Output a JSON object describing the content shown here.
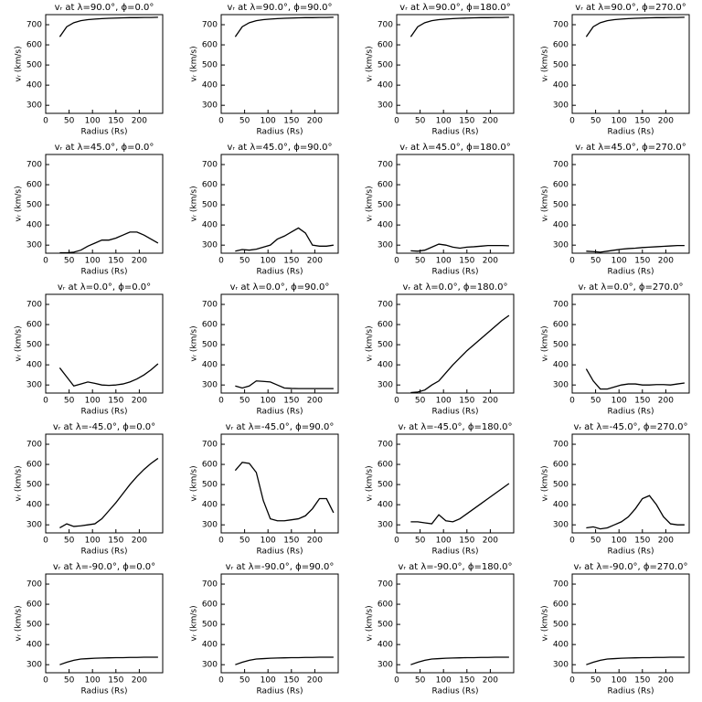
{
  "chart_data": [
    {
      "type": "line",
      "title": "vᵣ at λ=90.0°, ϕ=0.0°",
      "xlabel": "Radius (Rs)",
      "ylabel": "vᵣ (km/s)",
      "x": [
        30,
        45,
        60,
        75,
        90,
        105,
        120,
        135,
        150,
        165,
        180,
        195,
        210,
        225,
        240
      ],
      "values": [
        640,
        690,
        710,
        720,
        725,
        728,
        730,
        732,
        733,
        734,
        735,
        735,
        736,
        736,
        737
      ],
      "xlim": [
        0,
        250
      ],
      "ylim": [
        260,
        750
      ],
      "xticks": [
        0,
        50,
        100,
        150,
        200
      ],
      "yticks": [
        300,
        400,
        500,
        600,
        700
      ],
      "color": "#000000"
    },
    {
      "type": "line",
      "title": "vᵣ at λ=90.0°, ϕ=90.0°",
      "xlabel": "Radius (Rs)",
      "ylabel": "vᵣ (km/s)",
      "x": [
        30,
        45,
        60,
        75,
        90,
        105,
        120,
        135,
        150,
        165,
        180,
        195,
        210,
        225,
        240
      ],
      "values": [
        640,
        690,
        710,
        720,
        725,
        728,
        730,
        732,
        733,
        734,
        735,
        735,
        736,
        736,
        737
      ],
      "xlim": [
        0,
        250
      ],
      "ylim": [
        260,
        750
      ],
      "xticks": [
        0,
        50,
        100,
        150,
        200
      ],
      "yticks": [
        300,
        400,
        500,
        600,
        700
      ],
      "color": "#000000"
    },
    {
      "type": "line",
      "title": "vᵣ at λ=90.0°, ϕ=180.0°",
      "xlabel": "Radius (Rs)",
      "ylabel": "vᵣ (km/s)",
      "x": [
        30,
        45,
        60,
        75,
        90,
        105,
        120,
        135,
        150,
        165,
        180,
        195,
        210,
        225,
        240
      ],
      "values": [
        640,
        690,
        710,
        720,
        725,
        728,
        730,
        732,
        733,
        734,
        735,
        735,
        736,
        736,
        737
      ],
      "xlim": [
        0,
        250
      ],
      "ylim": [
        260,
        750
      ],
      "xticks": [
        0,
        50,
        100,
        150,
        200
      ],
      "yticks": [
        300,
        400,
        500,
        600,
        700
      ],
      "color": "#000000"
    },
    {
      "type": "line",
      "title": "vᵣ at λ=90.0°, ϕ=270.0°",
      "xlabel": "Radius (Rs)",
      "ylabel": "vᵣ (km/s)",
      "x": [
        30,
        45,
        60,
        75,
        90,
        105,
        120,
        135,
        150,
        165,
        180,
        195,
        210,
        225,
        240
      ],
      "values": [
        640,
        690,
        710,
        720,
        725,
        728,
        730,
        732,
        733,
        734,
        735,
        735,
        736,
        736,
        737
      ],
      "xlim": [
        0,
        250
      ],
      "ylim": [
        260,
        750
      ],
      "xticks": [
        0,
        50,
        100,
        150,
        200
      ],
      "yticks": [
        300,
        400,
        500,
        600,
        700
      ],
      "color": "#000000"
    },
    {
      "type": "line",
      "title": "vᵣ at λ=45.0°, ϕ=0.0°",
      "xlabel": "Radius (Rs)",
      "ylabel": "vᵣ (km/s)",
      "x": [
        30,
        45,
        60,
        75,
        90,
        105,
        120,
        135,
        150,
        165,
        180,
        195,
        210,
        225,
        240
      ],
      "values": [
        262,
        262,
        265,
        275,
        295,
        310,
        325,
        325,
        335,
        350,
        365,
        365,
        350,
        330,
        310
      ],
      "xlim": [
        0,
        250
      ],
      "ylim": [
        260,
        750
      ],
      "xticks": [
        0,
        50,
        100,
        150,
        200
      ],
      "yticks": [
        300,
        400,
        500,
        600,
        700
      ],
      "color": "#000000"
    },
    {
      "type": "line",
      "title": "vᵣ at λ=45.0°, ϕ=90.0°",
      "xlabel": "Radius (Rs)",
      "ylabel": "vᵣ (km/s)",
      "x": [
        30,
        45,
        60,
        75,
        90,
        105,
        120,
        135,
        150,
        165,
        180,
        195,
        210,
        225,
        240
      ],
      "values": [
        270,
        278,
        275,
        280,
        290,
        300,
        330,
        345,
        365,
        385,
        360,
        300,
        295,
        295,
        300
      ],
      "xlim": [
        0,
        250
      ],
      "ylim": [
        260,
        750
      ],
      "xticks": [
        0,
        50,
        100,
        150,
        200
      ],
      "yticks": [
        300,
        400,
        500,
        600,
        700
      ],
      "color": "#000000"
    },
    {
      "type": "line",
      "title": "vᵣ at λ=45.0°, ϕ=180.0°",
      "xlabel": "Radius (Rs)",
      "ylabel": "vᵣ (km/s)",
      "x": [
        30,
        45,
        60,
        75,
        90,
        105,
        120,
        135,
        150,
        165,
        180,
        195,
        210,
        225,
        240
      ],
      "values": [
        272,
        270,
        275,
        290,
        305,
        300,
        290,
        285,
        290,
        292,
        295,
        298,
        298,
        298,
        297
      ],
      "xlim": [
        0,
        250
      ],
      "ylim": [
        260,
        750
      ],
      "xticks": [
        0,
        50,
        100,
        150,
        200
      ],
      "yticks": [
        300,
        400,
        500,
        600,
        700
      ],
      "color": "#000000"
    },
    {
      "type": "line",
      "title": "vᵣ at λ=45.0°, ϕ=270.0°",
      "xlabel": "Radius (Rs)",
      "ylabel": "vᵣ (km/s)",
      "x": [
        30,
        45,
        60,
        75,
        90,
        105,
        120,
        135,
        150,
        165,
        180,
        195,
        210,
        225,
        240
      ],
      "values": [
        270,
        268,
        265,
        270,
        275,
        280,
        283,
        285,
        288,
        290,
        292,
        294,
        296,
        298,
        298
      ],
      "xlim": [
        0,
        250
      ],
      "ylim": [
        260,
        750
      ],
      "xticks": [
        0,
        50,
        100,
        150,
        200
      ],
      "yticks": [
        300,
        400,
        500,
        600,
        700
      ],
      "color": "#000000"
    },
    {
      "type": "line",
      "title": "vᵣ at λ=0.0°, ϕ=0.0°",
      "xlabel": "Radius (Rs)",
      "ylabel": "vᵣ (km/s)",
      "x": [
        30,
        45,
        60,
        75,
        90,
        105,
        120,
        135,
        150,
        165,
        180,
        195,
        210,
        225,
        240
      ],
      "values": [
        385,
        340,
        295,
        305,
        315,
        308,
        300,
        298,
        300,
        305,
        315,
        330,
        350,
        375,
        405
      ],
      "xlim": [
        0,
        250
      ],
      "ylim": [
        260,
        750
      ],
      "xticks": [
        0,
        50,
        100,
        150,
        200
      ],
      "yticks": [
        300,
        400,
        500,
        600,
        700
      ],
      "color": "#000000"
    },
    {
      "type": "line",
      "title": "vᵣ at λ=0.0°, ϕ=90.0°",
      "xlabel": "Radius (Rs)",
      "ylabel": "vᵣ (km/s)",
      "x": [
        30,
        45,
        60,
        75,
        90,
        105,
        120,
        135,
        150,
        165,
        180,
        195,
        210,
        225,
        240
      ],
      "values": [
        295,
        285,
        295,
        320,
        318,
        315,
        300,
        285,
        283,
        282,
        282,
        282,
        282,
        282,
        282
      ],
      "xlim": [
        0,
        250
      ],
      "ylim": [
        260,
        750
      ],
      "xticks": [
        0,
        50,
        100,
        150,
        200
      ],
      "yticks": [
        300,
        400,
        500,
        600,
        700
      ],
      "color": "#000000"
    },
    {
      "type": "line",
      "title": "vᵣ at λ=0.0°, ϕ=180.0°",
      "xlabel": "Radius (Rs)",
      "ylabel": "vᵣ (km/s)",
      "x": [
        30,
        45,
        60,
        75,
        90,
        105,
        120,
        135,
        150,
        165,
        180,
        195,
        210,
        225,
        240
      ],
      "values": [
        262,
        265,
        275,
        300,
        320,
        360,
        400,
        435,
        470,
        500,
        530,
        560,
        590,
        620,
        645
      ],
      "xlim": [
        0,
        250
      ],
      "ylim": [
        260,
        750
      ],
      "xticks": [
        0,
        50,
        100,
        150,
        200
      ],
      "yticks": [
        300,
        400,
        500,
        600,
        700
      ],
      "color": "#000000"
    },
    {
      "type": "line",
      "title": "vᵣ at λ=0.0°, ϕ=270.0°",
      "xlabel": "Radius (Rs)",
      "ylabel": "vᵣ (km/s)",
      "x": [
        30,
        45,
        60,
        75,
        90,
        105,
        120,
        135,
        150,
        165,
        180,
        195,
        210,
        225,
        240
      ],
      "values": [
        380,
        320,
        280,
        280,
        290,
        300,
        305,
        305,
        300,
        300,
        302,
        302,
        300,
        305,
        310
      ],
      "xlim": [
        0,
        250
      ],
      "ylim": [
        260,
        750
      ],
      "xticks": [
        0,
        50,
        100,
        150,
        200
      ],
      "yticks": [
        300,
        400,
        500,
        600,
        700
      ],
      "color": "#000000"
    },
    {
      "type": "line",
      "title": "vᵣ at λ=-45.0°, ϕ=0.0°",
      "xlabel": "Radius (Rs)",
      "ylabel": "vᵣ (km/s)",
      "x": [
        30,
        45,
        60,
        75,
        90,
        105,
        120,
        135,
        150,
        165,
        180,
        195,
        210,
        225,
        240
      ],
      "values": [
        285,
        305,
        292,
        295,
        300,
        305,
        330,
        370,
        410,
        455,
        500,
        540,
        575,
        605,
        630
      ],
      "xlim": [
        0,
        250
      ],
      "ylim": [
        260,
        750
      ],
      "xticks": [
        0,
        50,
        100,
        150,
        200
      ],
      "yticks": [
        300,
        400,
        500,
        600,
        700
      ],
      "color": "#000000"
    },
    {
      "type": "line",
      "title": "vᵣ at λ=-45.0°, ϕ=90.0°",
      "xlabel": "Radius (Rs)",
      "ylabel": "vᵣ (km/s)",
      "x": [
        30,
        45,
        60,
        75,
        90,
        105,
        120,
        135,
        150,
        165,
        180,
        195,
        210,
        225,
        240
      ],
      "values": [
        570,
        610,
        605,
        560,
        420,
        330,
        320,
        320,
        325,
        330,
        345,
        380,
        430,
        430,
        360
      ],
      "xlim": [
        0,
        250
      ],
      "ylim": [
        260,
        750
      ],
      "xticks": [
        0,
        50,
        100,
        150,
        200
      ],
      "yticks": [
        300,
        400,
        500,
        600,
        700
      ],
      "color": "#000000"
    },
    {
      "type": "line",
      "title": "vᵣ at λ=-45.0°, ϕ=180.0°",
      "xlabel": "Radius (Rs)",
      "ylabel": "vᵣ (km/s)",
      "x": [
        30,
        45,
        60,
        75,
        90,
        105,
        120,
        135,
        150,
        165,
        180,
        195,
        210,
        225,
        240
      ],
      "values": [
        315,
        315,
        310,
        305,
        350,
        320,
        315,
        330,
        355,
        380,
        405,
        430,
        455,
        480,
        505
      ],
      "xlim": [
        0,
        250
      ],
      "ylim": [
        260,
        750
      ],
      "xticks": [
        0,
        50,
        100,
        150,
        200
      ],
      "yticks": [
        300,
        400,
        500,
        600,
        700
      ],
      "color": "#000000"
    },
    {
      "type": "line",
      "title": "vᵣ at λ=-45.0°, ϕ=270.0°",
      "xlabel": "Radius (Rs)",
      "ylabel": "vᵣ (km/s)",
      "x": [
        30,
        45,
        60,
        75,
        90,
        105,
        120,
        135,
        150,
        165,
        180,
        195,
        210,
        225,
        240
      ],
      "values": [
        285,
        290,
        280,
        285,
        300,
        315,
        340,
        380,
        430,
        445,
        400,
        340,
        305,
        300,
        300
      ],
      "xlim": [
        0,
        250
      ],
      "ylim": [
        260,
        750
      ],
      "xticks": [
        0,
        50,
        100,
        150,
        200
      ],
      "yticks": [
        300,
        400,
        500,
        600,
        700
      ],
      "color": "#000000"
    },
    {
      "type": "line",
      "title": "vᵣ at λ=-90.0°, ϕ=0.0°",
      "xlabel": "Radius (Rs)",
      "ylabel": "vᵣ (km/s)",
      "x": [
        30,
        45,
        60,
        75,
        90,
        105,
        120,
        135,
        150,
        165,
        180,
        195,
        210,
        225,
        240
      ],
      "values": [
        300,
        312,
        322,
        328,
        330,
        332,
        333,
        334,
        335,
        335,
        336,
        336,
        337,
        337,
        337
      ],
      "xlim": [
        0,
        250
      ],
      "ylim": [
        260,
        750
      ],
      "xticks": [
        0,
        50,
        100,
        150,
        200
      ],
      "yticks": [
        300,
        400,
        500,
        600,
        700
      ],
      "color": "#000000"
    },
    {
      "type": "line",
      "title": "vᵣ at λ=-90.0°, ϕ=90.0°",
      "xlabel": "Radius (Rs)",
      "ylabel": "vᵣ (km/s)",
      "x": [
        30,
        45,
        60,
        75,
        90,
        105,
        120,
        135,
        150,
        165,
        180,
        195,
        210,
        225,
        240
      ],
      "values": [
        300,
        312,
        322,
        328,
        330,
        332,
        333,
        334,
        335,
        335,
        336,
        336,
        337,
        337,
        337
      ],
      "xlim": [
        0,
        250
      ],
      "ylim": [
        260,
        750
      ],
      "xticks": [
        0,
        50,
        100,
        150,
        200
      ],
      "yticks": [
        300,
        400,
        500,
        600,
        700
      ],
      "color": "#000000"
    },
    {
      "type": "line",
      "title": "vᵣ at λ=-90.0°, ϕ=180.0°",
      "xlabel": "Radius (Rs)",
      "ylabel": "vᵣ (km/s)",
      "x": [
        30,
        45,
        60,
        75,
        90,
        105,
        120,
        135,
        150,
        165,
        180,
        195,
        210,
        225,
        240
      ],
      "values": [
        300,
        312,
        322,
        328,
        330,
        332,
        333,
        334,
        335,
        335,
        336,
        336,
        337,
        337,
        337
      ],
      "xlim": [
        0,
        250
      ],
      "ylim": [
        260,
        750
      ],
      "xticks": [
        0,
        50,
        100,
        150,
        200
      ],
      "yticks": [
        300,
        400,
        500,
        600,
        700
      ],
      "color": "#000000"
    },
    {
      "type": "line",
      "title": "vᵣ at λ=-90.0°, ϕ=270.0°",
      "xlabel": "Radius (Rs)",
      "ylabel": "vᵣ (km/s)",
      "x": [
        30,
        45,
        60,
        75,
        90,
        105,
        120,
        135,
        150,
        165,
        180,
        195,
        210,
        225,
        240
      ],
      "values": [
        300,
        312,
        322,
        328,
        330,
        332,
        333,
        334,
        335,
        335,
        336,
        336,
        337,
        337,
        337
      ],
      "xlim": [
        0,
        250
      ],
      "ylim": [
        260,
        750
      ],
      "xticks": [
        0,
        50,
        100,
        150,
        200
      ],
      "yticks": [
        300,
        400,
        500,
        600,
        700
      ],
      "color": "#000000"
    }
  ]
}
